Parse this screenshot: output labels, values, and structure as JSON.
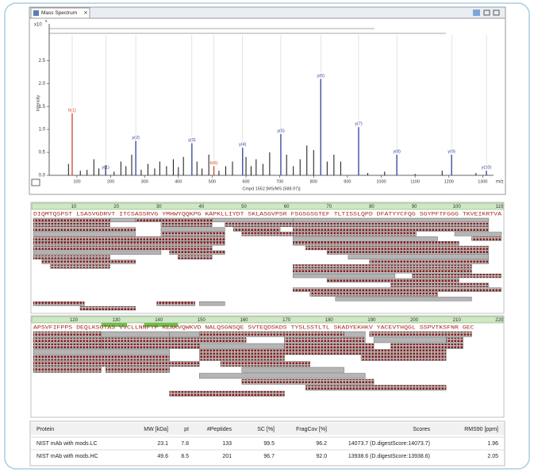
{
  "chart_data": {
    "type": "spectrum",
    "window_title": "Mass Spectrum",
    "xlabel": "Cmpd 1552 [MS/MS (588.97)]",
    "xunit": "m/z",
    "ylabel": "Intensity",
    "y_multiplier": "x10",
    "y_exponent": "5",
    "xlim": [
      18,
      1332
    ],
    "ylim": [
      0,
      3.3
    ],
    "xticks": [
      100,
      200,
      300,
      400,
      500,
      600,
      700,
      800,
      900,
      1000,
      1100,
      1200,
      1300
    ],
    "yticks": [
      {
        "value": 0,
        "label": "0.0"
      },
      0.5,
      {
        "value": 1,
        "label": "1.0"
      },
      1.5,
      {
        "value": 2,
        "label": "2.0"
      },
      2.5
    ],
    "color": "#111111",
    "x": [
      75,
      110,
      130,
      150,
      165,
      185,
      210,
      230,
      245,
      262,
      290,
      310,
      330,
      345,
      365,
      385,
      400,
      415,
      455,
      470,
      490,
      520,
      540,
      560,
      600,
      615,
      630,
      650,
      670,
      720,
      740,
      760,
      780,
      800,
      840,
      860,
      880,
      960,
      1010,
      1100,
      1180,
      1280
    ],
    "values": [
      0.25,
      0.1,
      0.12,
      0.35,
      0.15,
      0.22,
      0.08,
      0.3,
      0.2,
      0.45,
      0.12,
      0.25,
      0.15,
      0.3,
      0.2,
      0.35,
      0.18,
      0.4,
      0.3,
      0.15,
      0.45,
      0.1,
      0.2,
      0.3,
      0.4,
      0.2,
      0.35,
      0.25,
      0.5,
      0.45,
      0.2,
      0.35,
      0.65,
      0.55,
      0.3,
      0.45,
      0.3,
      0.05,
      0.08,
      0.03,
      0.1,
      0.05
    ],
    "annotations": [
      {
        "text": "b(1)",
        "x": 86,
        "y": 1.35,
        "color": "#d0421f"
      },
      {
        "text": "y(1)",
        "x": 185,
        "y": 0.1,
        "color": "#2f3f9a"
      },
      {
        "text": "y(2)",
        "x": 274,
        "y": 0.75,
        "color": "#2f3f9a"
      },
      {
        "text": "y(3)",
        "x": 440,
        "y": 0.7,
        "color": "#2f3f9a"
      },
      {
        "text": "b(6)",
        "x": 505,
        "y": 0.2,
        "color": "#d0421f"
      },
      {
        "text": "y(4)",
        "x": 590,
        "y": 0.6,
        "color": "#2f3f9a"
      },
      {
        "text": "y(5)",
        "x": 703,
        "y": 0.9,
        "color": "#2f3f9a"
      },
      {
        "text": "y(6)",
        "x": 821,
        "y": 2.1,
        "color": "#2f3f9a"
      },
      {
        "text": "y(7)",
        "x": 933,
        "y": 1.05,
        "color": "#2f3f9a"
      },
      {
        "text": "y(8)",
        "x": 1046,
        "y": 0.45,
        "color": "#2f3f9a"
      },
      {
        "text": "y(9)",
        "x": 1208,
        "y": 0.45,
        "color": "#2f3f9a"
      },
      {
        "text": "y(10)",
        "x": 1311,
        "y": 0.1,
        "color": "#2f3f9a"
      }
    ]
  },
  "coverage": [
    {
      "start": 1,
      "ruler": [
        10,
        20,
        30,
        40,
        50,
        60,
        70,
        80,
        90,
        100,
        110
      ],
      "sequence": "DIQMTQSPST LSASVGDRVT ITCSASSRVG YMHWYQQKPG KAPKLLIYDT SKLASGVPSR FSGSGSGTEF TLTISSLQPD DFATYYCFQG SGYPFTFGGG TKVEIKRTVA",
      "peptides": [
        [
          1,
          18
        ],
        [
          1,
          18
        ],
        [
          1,
          24
        ],
        [
          1,
          24
        ],
        [
          1,
          45
        ],
        [
          1,
          45
        ],
        [
          1,
          42
        ],
        [
          1,
          30
        ],
        [
          1,
          18
        ],
        [
          3,
          24
        ],
        [
          5,
          18
        ],
        [
          19,
          24
        ],
        [
          25,
          30
        ],
        [
          31,
          42
        ],
        [
          31,
          42
        ],
        [
          31,
          45
        ],
        [
          31,
          45
        ],
        [
          33,
          45
        ],
        [
          35,
          42
        ],
        [
          43,
          61
        ],
        [
          46,
          61
        ],
        [
          48,
          58
        ],
        [
          50,
          61
        ],
        [
          62,
          107
        ],
        [
          62,
          107
        ],
        [
          62,
          107
        ],
        [
          62,
          90
        ],
        [
          62,
          95
        ],
        [
          62,
          100
        ],
        [
          65,
          107
        ],
        [
          70,
          107
        ],
        [
          75,
          107
        ],
        [
          80,
          107
        ],
        [
          62,
          103
        ],
        [
          62,
          103
        ],
        [
          62,
          85
        ],
        [
          70,
          100
        ],
        [
          85,
          107
        ],
        [
          90,
          110
        ],
        [
          100,
          110
        ],
        [
          104,
          110
        ],
        [
          62,
          110
        ],
        [
          66,
          95
        ],
        [
          72,
          103
        ],
        [
          1,
          12
        ],
        [
          12,
          24
        ],
        [
          30,
          38
        ],
        [
          40,
          45
        ]
      ]
    },
    {
      "start": 111,
      "ruler": [
        120,
        130,
        140,
        150,
        160,
        170,
        180,
        190,
        200,
        210,
        220
      ],
      "sequence": "APSVFIFPPS DEQLKSGTAS VVCLLNNFYP REAKVQWKVD NALQSGNSQE SVTEQDSKDS TYSLSSTLTL SKADYEKHKV YACEVTHQGL SSPVTKSFNR GEC",
      "peptides": [
        [
          111,
          126
        ],
        [
          111,
          126
        ],
        [
          111,
          126
        ],
        [
          111,
          142
        ],
        [
          111,
          142
        ],
        [
          111,
          149
        ],
        [
          111,
          126
        ],
        [
          127,
          142
        ],
        [
          127,
          142
        ],
        [
          127,
          145
        ],
        [
          128,
          142
        ],
        [
          143,
          149
        ],
        [
          143,
          160
        ],
        [
          146,
          149
        ],
        [
          150,
          169
        ],
        [
          150,
          169
        ],
        [
          150,
          183
        ],
        [
          150,
          169
        ],
        [
          155,
          175
        ],
        [
          160,
          183
        ],
        [
          170,
          183
        ],
        [
          170,
          188
        ],
        [
          170,
          190
        ],
        [
          184,
          188
        ],
        [
          184,
          207
        ],
        [
          188,
          207
        ],
        [
          190,
          207
        ],
        [
          191,
          207
        ],
        [
          195,
          211
        ],
        [
          208,
          213
        ],
        [
          208,
          211
        ],
        [
          150,
          188
        ],
        [
          160,
          190
        ],
        [
          175,
          207
        ],
        [
          143,
          169
        ]
      ]
    }
  ],
  "table": {
    "header": [
      "Protein",
      "MW [kDa]",
      "pI",
      "#Peptides",
      "SC [%]",
      "FragCov [%]",
      "Scores",
      "RMS90 [ppm]"
    ],
    "rows": [
      [
        "NIST mAb with mods.LC",
        "23.1",
        "7.8",
        "133",
        "99.5",
        "96.2",
        "14073.7 (D.digestScore:14073.7)",
        "1.96"
      ],
      [
        "NIST mAb with mods.HC",
        "49.6",
        "8.5",
        "201",
        "96.7",
        "92.0",
        "13938.6 (D.digestScore:13938.6)",
        "2.05"
      ]
    ]
  }
}
